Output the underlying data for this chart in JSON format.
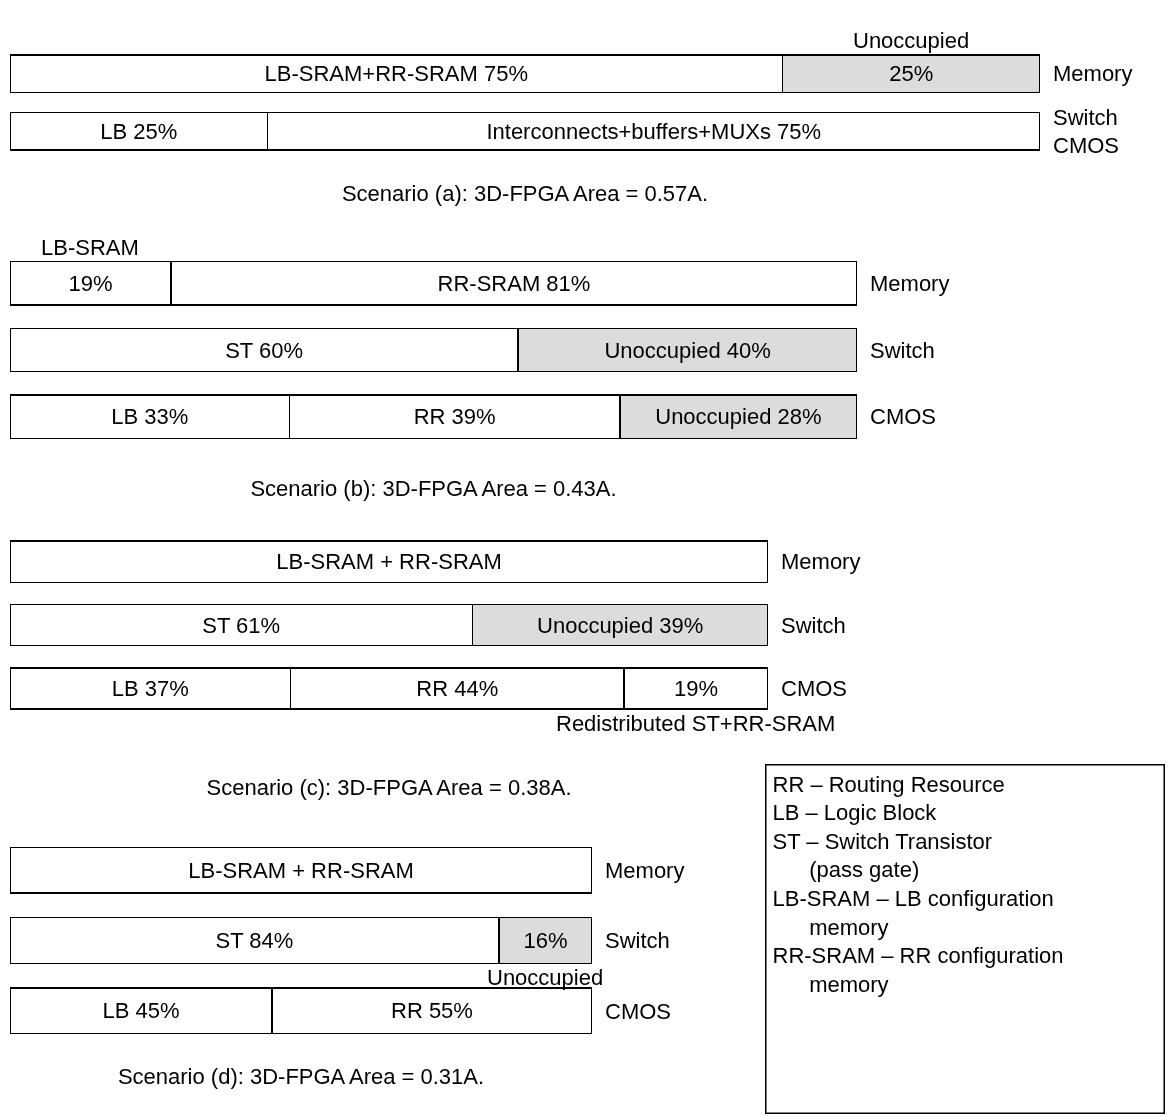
{
  "chart_data": [
    {
      "type": "bar",
      "orientation": "horizontal",
      "stacked": true,
      "title": "Scenario (a): 3D-FPGA Area = 0.57A.",
      "categories": [
        "Memory",
        "Switch\nCMOS"
      ],
      "xlim": [
        0,
        100
      ],
      "tick_labels": "y",
      "series": [
        {
          "colors": [
            "#ffffff",
            "#ffffff"
          ],
          "values": [
            75,
            25
          ],
          "value_labels": [
            "LB-SRAM+RR-SRAM 75%",
            "LB 25%"
          ]
        },
        {
          "colors": [
            "#dcdcdc",
            "#ffffff"
          ],
          "values": [
            25,
            75
          ],
          "value_labels": [
            "25%",
            "Interconnects+buffers+MUXs 75%"
          ]
        }
      ],
      "annotations": [
        "Unoccupied"
      ]
    },
    {
      "type": "bar",
      "orientation": "horizontal",
      "stacked": true,
      "title": "Scenario (b): 3D-FPGA Area = 0.43A.",
      "categories": [
        "Memory",
        "Switch",
        "CMOS"
      ],
      "xlim": [
        0,
        100
      ],
      "tick_labels": "y",
      "series": [
        {
          "colors": [
            "#ffffff",
            "#ffffff",
            "#ffffff"
          ],
          "values": [
            19,
            60,
            33
          ],
          "value_labels": [
            "19%",
            "ST 60%",
            "LB 33%"
          ]
        },
        {
          "colors": [
            "#ffffff",
            "#dcdcdc",
            "#ffffff"
          ],
          "values": [
            81,
            40,
            39
          ],
          "value_labels": [
            "RR-SRAM 81%",
            "Unoccupied 40%",
            "RR 39%"
          ]
        },
        {
          "colors": [
            "#ffffff",
            "#ffffff",
            "#dcdcdc"
          ],
          "values": [
            null,
            null,
            28
          ],
          "value_labels": [
            null,
            null,
            "Unoccupied 28%"
          ]
        }
      ],
      "annotations": [
        "LB-SRAM"
      ]
    },
    {
      "type": "bar",
      "orientation": "horizontal",
      "stacked": true,
      "title": "Scenario (c): 3D-FPGA Area = 0.38A.",
      "categories": [
        "Memory",
        "Switch",
        "CMOS"
      ],
      "xlim": [
        0,
        100
      ],
      "tick_labels": "y",
      "series": [
        {
          "colors": [
            "#ffffff",
            "#ffffff",
            "#ffffff"
          ],
          "values": [
            100,
            61,
            37
          ],
          "value_labels": [
            "LB-SRAM + RR-SRAM",
            "ST 61%",
            "LB 37%"
          ]
        },
        {
          "colors": [
            "#ffffff",
            "#dcdcdc",
            "#ffffff"
          ],
          "values": [
            null,
            39,
            44
          ],
          "value_labels": [
            null,
            "Unoccupied 39%",
            "RR 44%"
          ]
        },
        {
          "colors": [
            "#ffffff",
            "#ffffff",
            "#ffffff"
          ],
          "values": [
            null,
            null,
            19
          ],
          "value_labels": [
            null,
            null,
            "19%"
          ]
        }
      ],
      "annotations": [
        "Redistributed ST+RR-SRAM"
      ]
    },
    {
      "type": "bar",
      "orientation": "horizontal",
      "stacked": true,
      "title": "Scenario (d): 3D-FPGA Area = 0.31A.",
      "categories": [
        "Memory",
        "Switch",
        "CMOS"
      ],
      "xlim": [
        0,
        100
      ],
      "tick_labels": "y",
      "series": [
        {
          "colors": [
            "#ffffff",
            "#ffffff",
            "#ffffff"
          ],
          "values": [
            100,
            84,
            45
          ],
          "value_labels": [
            "LB-SRAM + RR-SRAM",
            "ST 84%",
            "LB 45%"
          ]
        },
        {
          "colors": [
            "#ffffff",
            "#dcdcdc",
            "#ffffff"
          ],
          "values": [
            null,
            16,
            55
          ],
          "value_labels": [
            null,
            "16%",
            "RR 55%"
          ]
        }
      ],
      "annotations": [
        "Unoccupied",
        "RR – Routing Resource",
        "LB – Logic Block",
        "ST – Switch Transistor\n(pass gate)",
        "LB-SRAM – LB configuration\nmemory",
        "RR-SRAM – RR configuration\nmemory"
      ]
    }
  ]
}
